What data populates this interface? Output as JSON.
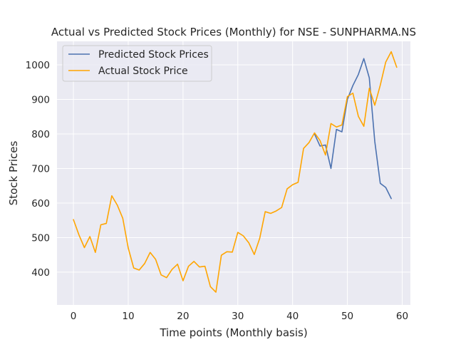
{
  "chart_data": {
    "type": "line",
    "title": "Actual vs Predicted Stock Prices (Monthly) for NSE - SUNPHARMA.NS",
    "xlabel": "Time points (Monthly basis)",
    "ylabel": "Stock Prices",
    "xlim": [
      -3,
      61.5
    ],
    "ylim": [
      305,
      1068
    ],
    "xticks": [
      0,
      10,
      20,
      30,
      40,
      50,
      60
    ],
    "yticks": [
      400,
      500,
      600,
      700,
      800,
      900,
      1000
    ],
    "grid": true,
    "legend_position": "top-left",
    "series": [
      {
        "name": "Predicted Stock Prices",
        "color": "#4c72b0",
        "x": [
          44,
          45,
          46,
          47,
          48,
          49,
          50,
          51,
          52,
          53,
          54,
          55,
          56,
          57,
          58
        ],
        "y": [
          800,
          765,
          768,
          700,
          813,
          806,
          900,
          940,
          972,
          1018,
          962,
          778,
          657,
          645,
          613
        ]
      },
      {
        "name": "Actual Stock Price",
        "color": "#ffa500",
        "x": [
          0,
          1,
          2,
          3,
          4,
          5,
          6,
          7,
          8,
          9,
          10,
          11,
          12,
          13,
          14,
          15,
          16,
          17,
          18,
          19,
          20,
          21,
          22,
          23,
          24,
          25,
          26,
          27,
          28,
          29,
          30,
          31,
          32,
          33,
          34,
          35,
          36,
          37,
          38,
          39,
          40,
          41,
          42,
          43,
          44,
          45,
          46,
          47,
          48,
          49,
          50,
          51,
          52,
          53,
          54,
          55,
          56,
          57,
          58,
          59
        ],
        "y": [
          552,
          508,
          471,
          503,
          457,
          537,
          541,
          621,
          594,
          556,
          470,
          412,
          406,
          425,
          457,
          437,
          392,
          384,
          408,
          423,
          375,
          417,
          431,
          415,
          417,
          358,
          342,
          449,
          459,
          458,
          515,
          505,
          485,
          451,
          498,
          575,
          570,
          577,
          587,
          641,
          653,
          660,
          758,
          775,
          803,
          781,
          739,
          830,
          820,
          826,
          908,
          918,
          851,
          822,
          932,
          883,
          941,
          1008,
          1038,
          993
        ]
      }
    ]
  }
}
